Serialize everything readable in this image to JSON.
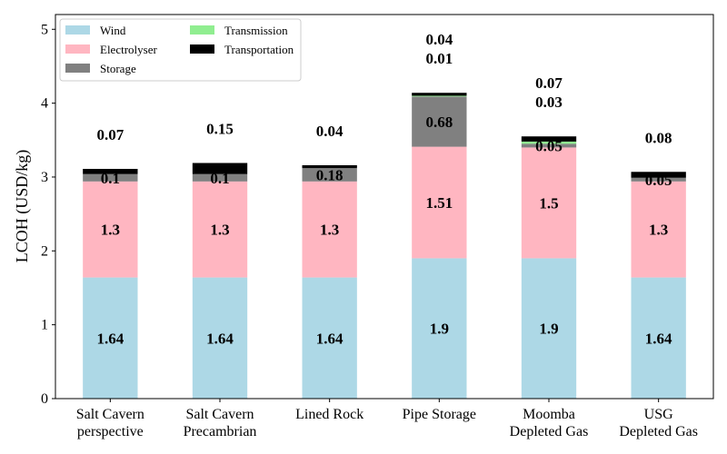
{
  "chart_data": {
    "type": "bar",
    "stacked": true,
    "categories": [
      [
        "Salt Cavern",
        "perspective"
      ],
      [
        "Salt Cavern",
        "Precambrian"
      ],
      [
        "Lined Rock"
      ],
      [
        "Pipe Storage"
      ],
      [
        "Moomba",
        "Depleted Gas"
      ],
      [
        "USG",
        "Depleted Gas"
      ]
    ],
    "series": [
      {
        "name": "Wind",
        "color": "#add8e6",
        "values": [
          1.64,
          1.64,
          1.64,
          1.9,
          1.9,
          1.64
        ]
      },
      {
        "name": "Electrolyser",
        "color": "#ffb6c1",
        "values": [
          1.3,
          1.3,
          1.3,
          1.51,
          1.5,
          1.3
        ]
      },
      {
        "name": "Storage",
        "color": "#808080",
        "values": [
          0.1,
          0.1,
          0.18,
          0.68,
          0.05,
          0.05
        ]
      },
      {
        "name": "Transmission",
        "color": "#90ee90",
        "values": [
          0,
          0,
          0,
          0.01,
          0.03,
          0
        ]
      },
      {
        "name": "Transportation",
        "color": "#000000",
        "values": [
          0.07,
          0.15,
          0.04,
          0.04,
          0.07,
          0.08
        ]
      }
    ],
    "data_labels": [
      {
        "inside": [
          "1.64",
          "1.3",
          "0.1"
        ],
        "above": [
          "0.07"
        ]
      },
      {
        "inside": [
          "1.64",
          "1.3",
          "0.1"
        ],
        "above": [
          "0.15"
        ]
      },
      {
        "inside": [
          "1.64",
          "1.3",
          "0.18"
        ],
        "above": [
          "0.04"
        ]
      },
      {
        "inside": [
          "1.9",
          "1.51",
          "0.68"
        ],
        "above": [
          "0.01",
          "0.04"
        ]
      },
      {
        "inside": [
          "1.9",
          "1.5",
          "0.05"
        ],
        "above": [
          "0.03",
          "0.07"
        ]
      },
      {
        "inside": [
          "1.64",
          "1.3",
          "0.05"
        ],
        "above": [
          "0.08"
        ]
      }
    ],
    "ylabel": "LCOH (USD/kg)",
    "xlabel": "",
    "ylim": [
      0,
      5.2
    ],
    "yticks": [
      "0",
      "1",
      "2",
      "3",
      "4",
      "5"
    ],
    "grid": false,
    "legend_position": "top-left",
    "legend_columns": 2
  }
}
